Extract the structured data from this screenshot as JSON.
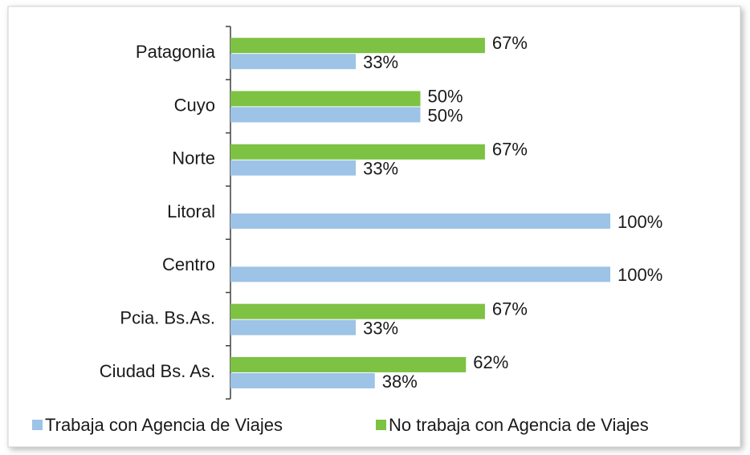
{
  "chart_data": {
    "type": "hbar",
    "categories": [
      "Patagonia",
      "Cuyo",
      "Norte",
      "Litoral",
      "Centro",
      "Pcia. Bs.As.",
      "Ciudad Bs. As."
    ],
    "series": [
      {
        "name": "Trabaja con Agencia de Viajes",
        "color": "#9dc3e6",
        "values": [
          33,
          50,
          33,
          100,
          100,
          33,
          38
        ],
        "value_labels": [
          "33%",
          "50%",
          "33%",
          "100%",
          "100%",
          "33%",
          "38%"
        ]
      },
      {
        "name": "No trabaja con Agencia de Viajes",
        "color": "#7dc242",
        "values": [
          67,
          50,
          67,
          null,
          null,
          67,
          62
        ],
        "value_labels": [
          "67%",
          "50%",
          "67%",
          null,
          null,
          "67%",
          "62%"
        ]
      }
    ]
  }
}
